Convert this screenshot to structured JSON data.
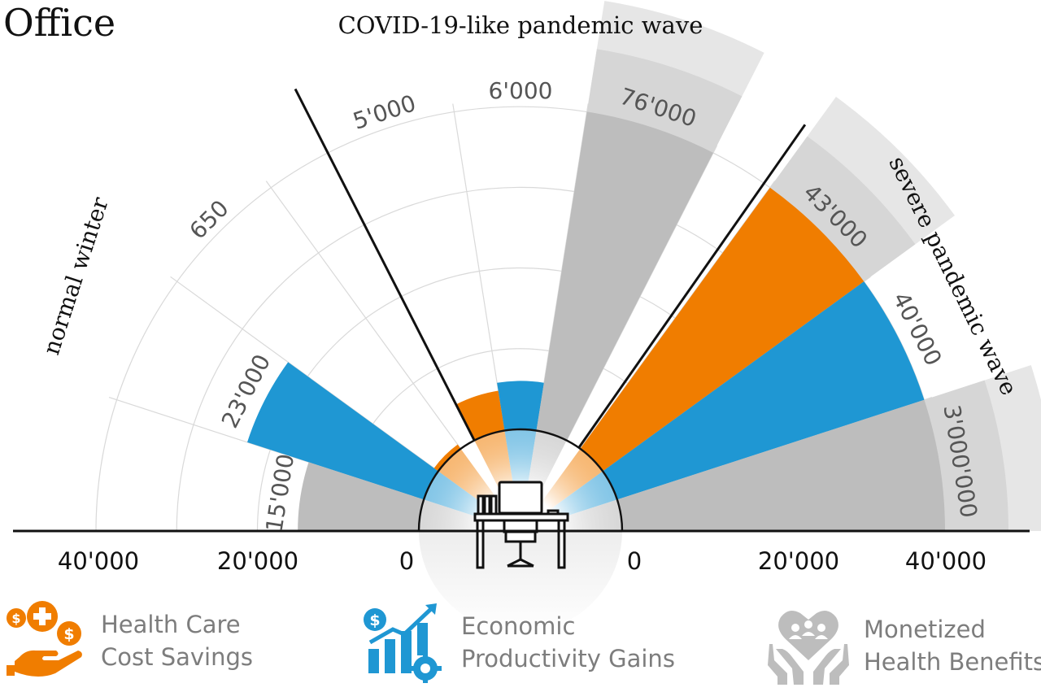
{
  "chart_data": {
    "type": "polar-bar",
    "title": "Office",
    "scenarios": [
      {
        "label": "normal winter"
      },
      {
        "label": "COVID-19-like pandemic wave"
      },
      {
        "label": "severe pandemic wave"
      }
    ],
    "xlim": [
      -40000,
      40000
    ],
    "x_tick_labels": [
      "40'000",
      "20'000",
      "0",
      "0",
      "20'000",
      "40'000"
    ],
    "series": [
      {
        "name": "Health Care Cost Savings",
        "color": "#f07d00"
      },
      {
        "name": "Economic Productivity Gains",
        "color": "#1f97d3"
      },
      {
        "name": "Monetized Health Benefits",
        "color": "#bdbdbd"
      }
    ],
    "sectors": [
      {
        "scenario": "normal winter",
        "series": "Health Care Cost Savings",
        "value": 650,
        "value_label": "650"
      },
      {
        "scenario": "normal winter",
        "series": "Economic Productivity Gains",
        "value": 23000,
        "value_label": "23'000"
      },
      {
        "scenario": "normal winter",
        "series": "Monetized Health Benefits",
        "value": 15000,
        "value_label": "15'000"
      },
      {
        "scenario": "COVID-19-like pandemic wave",
        "series": "Health Care Cost Savings",
        "value": 5000,
        "value_label": "5'000"
      },
      {
        "scenario": "COVID-19-like pandemic wave",
        "series": "Economic Productivity Gains",
        "value": 6000,
        "value_label": "6'000"
      },
      {
        "scenario": "COVID-19-like pandemic wave",
        "series": "Monetized Health Benefits",
        "value": 76000,
        "value_label": "76'000"
      },
      {
        "scenario": "severe pandemic wave",
        "series": "Health Care Cost Savings",
        "value": 43000,
        "value_label": "43'000"
      },
      {
        "scenario": "severe pandemic wave",
        "series": "Economic Productivity Gains",
        "value": 40000,
        "value_label": "40'000"
      },
      {
        "scenario": "severe pandemic wave",
        "series": "Monetized Health Benefits",
        "value": 3000000,
        "value_label": "3'000'000"
      }
    ],
    "grid": true
  },
  "legend": [
    {
      "line1": "Health Care",
      "line2": "Cost Savings",
      "color": "#f07d00",
      "icon": "health-care-savings-icon"
    },
    {
      "line1": "Economic",
      "line2": "Productivity Gains",
      "color": "#1f97d3",
      "icon": "productivity-chart-icon"
    },
    {
      "line1": "Monetized",
      "line2": "Health Benefits",
      "color": "#bdbdbd",
      "icon": "heart-hands-icon"
    }
  ],
  "center_icon": "office-desk-icon"
}
